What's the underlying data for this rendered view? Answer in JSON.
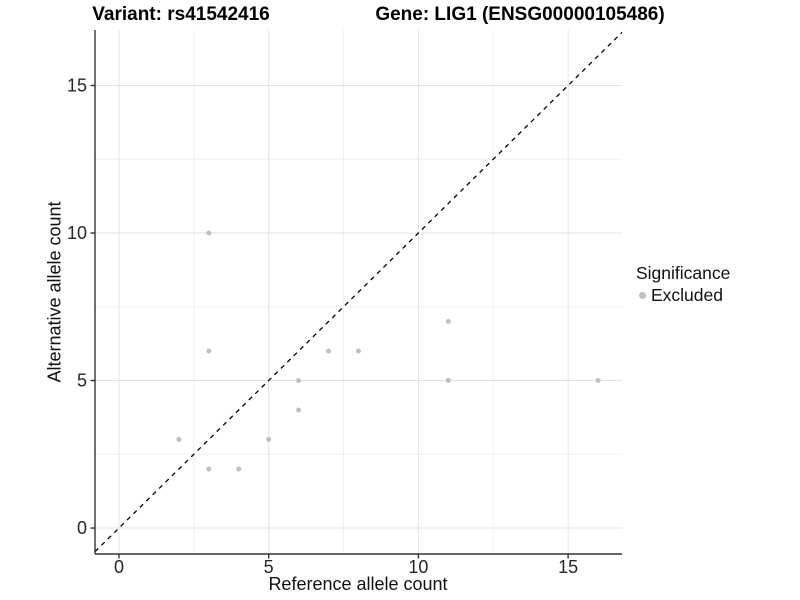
{
  "title": {
    "left": "Variant: rs41542416",
    "right": "Gene: LIG1 (ENSG00000105486)"
  },
  "axes": {
    "x_label": "Reference allele count",
    "y_label": "Alternative allele count"
  },
  "legend": {
    "title": "Significance",
    "items": [
      {
        "label": "Excluded",
        "color": "#bfbfbf"
      }
    ]
  },
  "colors": {
    "background": "#ffffff",
    "point": "#bfbfbf",
    "grid_major": "#e2e2e2",
    "grid_minor": "#efefef",
    "axis_line": "#333333",
    "tick_text": "#262626",
    "reference_line": "#000000"
  },
  "chart_data": {
    "type": "scatter",
    "title": "Variant: rs41542416        Gene: LIG1 (ENSG00000105486)",
    "xlabel": "Reference allele count",
    "ylabel": "Alternative allele count",
    "xlim": [
      -0.8,
      16.8
    ],
    "ylim": [
      -0.88,
      16.88
    ],
    "x_ticks": [
      0,
      5,
      10,
      15
    ],
    "y_ticks": [
      0,
      5,
      10,
      15
    ],
    "x_minor_ticks": [
      2.5,
      7.5,
      12.5
    ],
    "y_minor_ticks": [
      2.5,
      7.5,
      12.5
    ],
    "grid": true,
    "legend_position": "right",
    "legend_title": "Significance",
    "series": [
      {
        "name": "Excluded",
        "color": "#bfbfbf",
        "points": [
          [
            2,
            3
          ],
          [
            3,
            2
          ],
          [
            3,
            6
          ],
          [
            3,
            10
          ],
          [
            4,
            2
          ],
          [
            5,
            3
          ],
          [
            6,
            4
          ],
          [
            6,
            5
          ],
          [
            7,
            6
          ],
          [
            8,
            6
          ],
          [
            11,
            5
          ],
          [
            11,
            7
          ],
          [
            16,
            5
          ]
        ]
      }
    ],
    "reference_line": {
      "type": "identity",
      "slope": 1,
      "intercept": 0,
      "style": "dashed",
      "color": "#000000"
    }
  }
}
